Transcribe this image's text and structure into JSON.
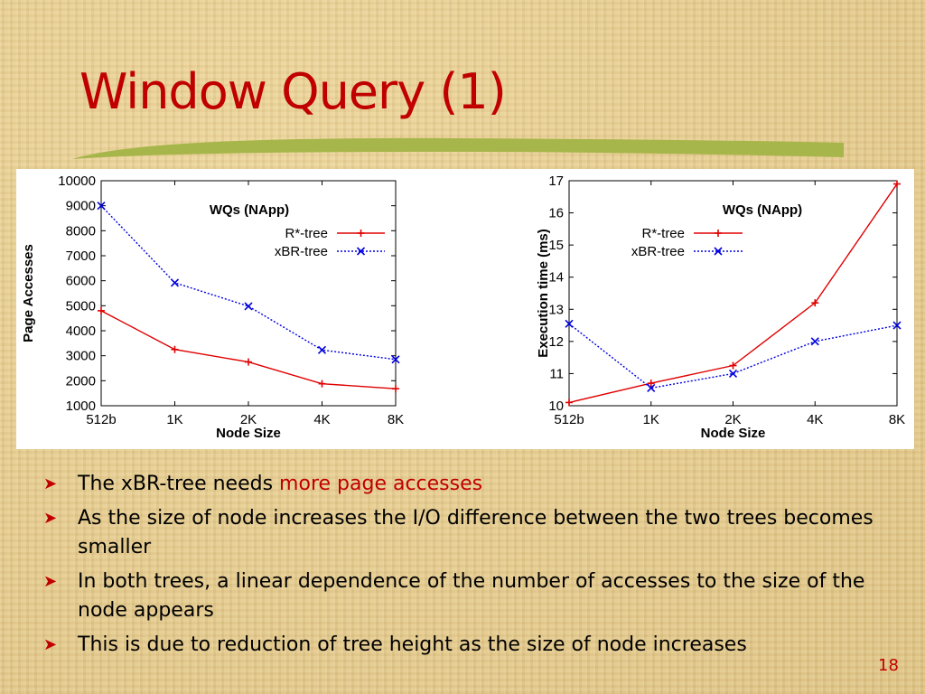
{
  "slide": {
    "title": "Window Query (1)",
    "page_number": "18",
    "bullets": [
      {
        "text": "The xBR-tree needs ",
        "highlight": "more page accesses"
      },
      {
        "text": "As the size of node increases the I/O difference between the two trees becomes smaller",
        "highlight": ""
      },
      {
        "text": "In both trees, a linear dependence of the number of accesses to the size of the node appears",
        "highlight": ""
      },
      {
        "text": "This is due to reduction of tree height as the size of node increases",
        "highlight": ""
      }
    ],
    "colors": {
      "title": "#c00000",
      "swoosh": "#a7b64a",
      "r_tree": "#e00000",
      "xbr_tree": "#0000e0"
    }
  },
  "chart_data": [
    {
      "type": "line",
      "title": "WQs (NApp)",
      "xlabel": "Node Size",
      "ylabel": "Page Accesses",
      "categories": [
        "512b",
        "1K",
        "2K",
        "4K",
        "8K"
      ],
      "ylim": [
        1000,
        10000
      ],
      "yticks": [
        1000,
        2000,
        3000,
        4000,
        5000,
        6000,
        7000,
        8000,
        9000,
        10000
      ],
      "grid": false,
      "legend": "top-right",
      "series": [
        {
          "name": "R*-tree",
          "values": [
            4800,
            3250,
            2750,
            1880,
            1680
          ],
          "color": "#e00000",
          "marker": "+",
          "dash": false
        },
        {
          "name": "xBR-tree",
          "values": [
            9000,
            5920,
            4980,
            3230,
            2850
          ],
          "color": "#0000e0",
          "marker": "x",
          "dash": true
        }
      ]
    },
    {
      "type": "line",
      "title": "WQs (NApp)",
      "xlabel": "Node Size",
      "ylabel": "Execution time (ms)",
      "categories": [
        "512b",
        "1K",
        "2K",
        "4K",
        "8K"
      ],
      "ylim": [
        10,
        17
      ],
      "yticks": [
        10,
        11,
        12,
        13,
        14,
        15,
        16,
        17
      ],
      "grid": false,
      "legend": "top-left",
      "series": [
        {
          "name": "R*-tree",
          "values": [
            10.1,
            10.7,
            11.25,
            13.2,
            16.9
          ],
          "color": "#e00000",
          "marker": "+",
          "dash": false
        },
        {
          "name": "xBR-tree",
          "values": [
            12.55,
            10.55,
            11.0,
            12.0,
            12.5
          ],
          "color": "#0000e0",
          "marker": "x",
          "dash": true
        }
      ]
    }
  ]
}
